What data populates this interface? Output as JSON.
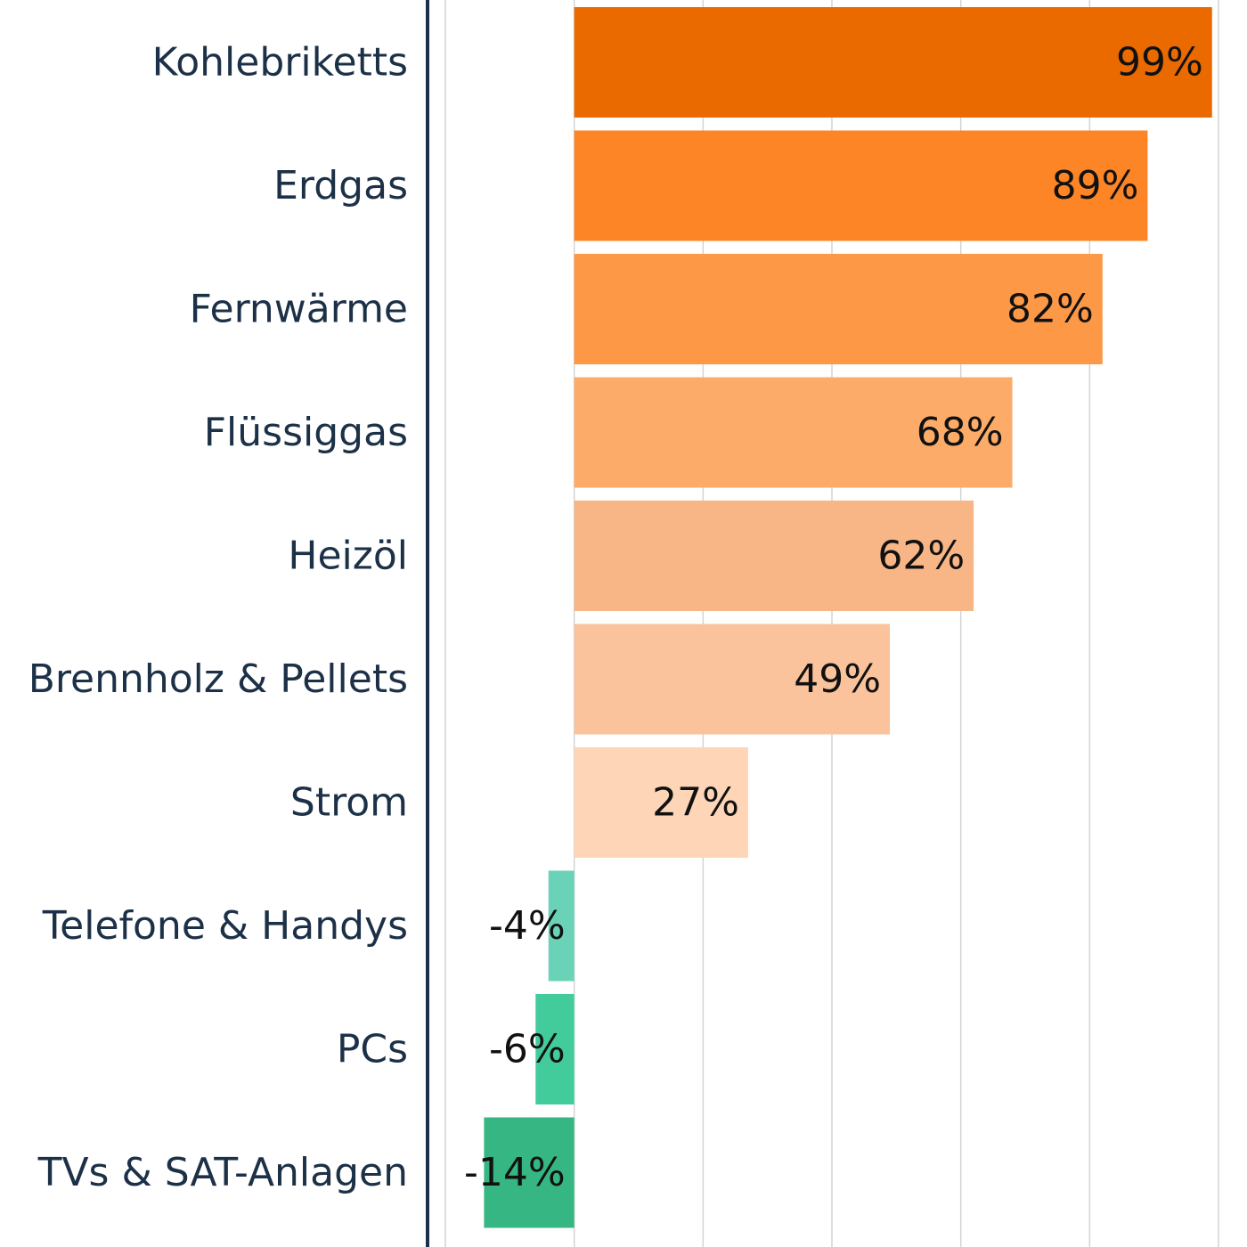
{
  "chart_data": {
    "type": "bar",
    "orientation": "horizontal",
    "title": "",
    "xlabel": "",
    "ylabel": "",
    "categories": [
      "Kohlebriketts",
      "Erdgas",
      "Fernwärme",
      "Flüssiggas",
      "Heizöl",
      "Brennholz & Pellets",
      "Strom",
      "Telefone & Handys",
      "PCs",
      "TVs & SAT-Anlagen"
    ],
    "values": [
      99,
      89,
      82,
      68,
      62,
      49,
      27,
      -4,
      -6,
      -14
    ],
    "value_labels": [
      "99%",
      "89%",
      "82%",
      "68%",
      "62%",
      "49%",
      "27%",
      "-4%",
      "-6%",
      "-14%"
    ],
    "xlim": [
      -20,
      100
    ],
    "gridlines_at": [
      -20,
      0,
      20,
      40,
      60,
      80,
      100
    ],
    "grid": true,
    "legend": "none",
    "colors": [
      "#eb6a00",
      "#fd8526",
      "#fd9847",
      "#fcab68",
      "#f8b585",
      "#fbc39c",
      "#fed6b7",
      "#6ad3b7",
      "#42cc9c",
      "#36b682"
    ]
  }
}
